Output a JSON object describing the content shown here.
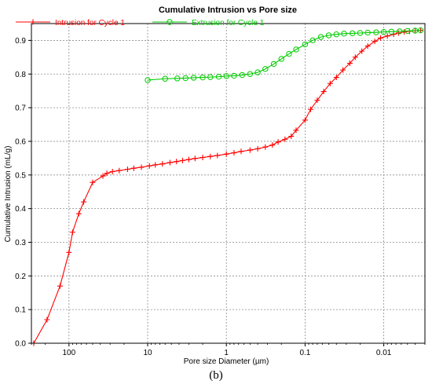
{
  "chart_data": {
    "type": "line",
    "title": "Cumulative Intrusion vs Pore size",
    "xlabel": "Pore size Diameter (µm)",
    "ylabel": "Cumulative Intrusion (mL/g)",
    "x_scale": "log",
    "x_reversed": true,
    "xlim": [
      300,
      0.003
    ],
    "ylim": [
      0,
      0.95
    ],
    "grid": true,
    "legend": "top-left",
    "x_ticks": [
      100,
      10,
      1,
      0.1,
      0.01
    ],
    "x_tick_labels": [
      "100",
      "10",
      "1",
      "0.1",
      "0.01"
    ],
    "y_ticks": [
      0.0,
      0.1,
      0.2,
      0.3,
      0.4,
      0.5,
      0.6,
      0.7,
      0.8,
      0.9
    ],
    "y_tick_labels": [
      "0.0",
      "0.1",
      "0.2",
      "0.3",
      "0.4",
      "0.5",
      "0.6",
      "0.7",
      "0.8",
      "0.9"
    ],
    "series": [
      {
        "name": "Intrusion for Cycle 1",
        "color": "#ff0000",
        "marker": "plus",
        "x": [
          280,
          190,
          130,
          100,
          90,
          75,
          65,
          50,
          37,
          33,
          28,
          23,
          18,
          15,
          12,
          9.5,
          8,
          6.5,
          5.2,
          4.3,
          3.6,
          3,
          2.5,
          2,
          1.6,
          1.3,
          1,
          0.8,
          0.65,
          0.5,
          0.4,
          0.32,
          0.26,
          0.22,
          0.18,
          0.15,
          0.13,
          0.1,
          0.085,
          0.07,
          0.058,
          0.048,
          0.04,
          0.033,
          0.027,
          0.023,
          0.019,
          0.016,
          0.013,
          0.011,
          0.009,
          0.0075,
          0.0065,
          0.0055,
          0.0047,
          0.004,
          0.0034
        ],
        "y": [
          0.0,
          0.07,
          0.17,
          0.27,
          0.33,
          0.385,
          0.42,
          0.478,
          0.497,
          0.505,
          0.51,
          0.513,
          0.517,
          0.52,
          0.523,
          0.527,
          0.53,
          0.533,
          0.537,
          0.54,
          0.543,
          0.546,
          0.549,
          0.552,
          0.555,
          0.558,
          0.562,
          0.566,
          0.57,
          0.574,
          0.578,
          0.583,
          0.589,
          0.598,
          0.606,
          0.615,
          0.633,
          0.663,
          0.695,
          0.722,
          0.748,
          0.772,
          0.79,
          0.812,
          0.832,
          0.85,
          0.868,
          0.883,
          0.897,
          0.907,
          0.913,
          0.918,
          0.922,
          0.925,
          0.927,
          0.929,
          0.93
        ]
      },
      {
        "name": "Extrusion for Cycle 1",
        "color": "#00cc00",
        "marker": "circle",
        "x": [
          10,
          6,
          4.2,
          3.3,
          2.6,
          2,
          1.6,
          1.25,
          1,
          0.8,
          0.63,
          0.5,
          0.4,
          0.32,
          0.25,
          0.2,
          0.16,
          0.13,
          0.1,
          0.08,
          0.063,
          0.05,
          0.04,
          0.032,
          0.025,
          0.02,
          0.016,
          0.0125,
          0.01,
          0.008,
          0.0063,
          0.005,
          0.004,
          0.0034
        ],
        "y": [
          0.782,
          0.786,
          0.787,
          0.788,
          0.789,
          0.79,
          0.791,
          0.792,
          0.794,
          0.795,
          0.797,
          0.8,
          0.805,
          0.815,
          0.83,
          0.845,
          0.86,
          0.873,
          0.888,
          0.9,
          0.91,
          0.915,
          0.918,
          0.92,
          0.921,
          0.922,
          0.923,
          0.924,
          0.925,
          0.926,
          0.927,
          0.928,
          0.929,
          0.93
        ]
      }
    ]
  },
  "caption": "(b)"
}
